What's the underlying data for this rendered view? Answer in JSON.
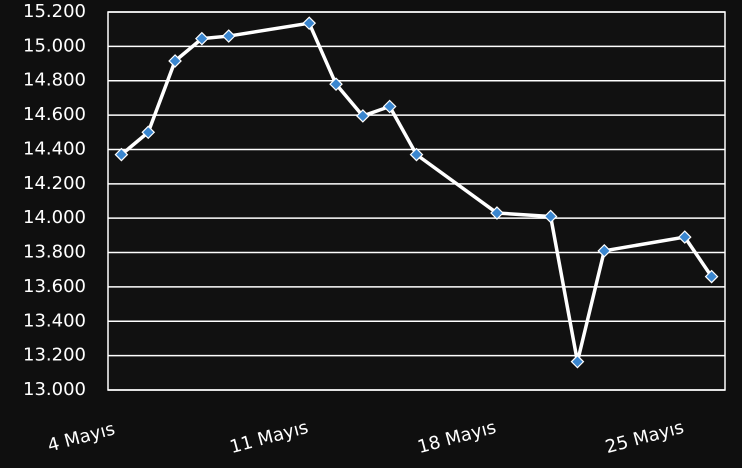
{
  "chart_data": {
    "type": "line",
    "x": [
      4,
      5,
      6,
      7,
      8,
      11,
      12,
      13,
      14,
      15,
      18,
      20,
      21,
      22,
      25,
      26
    ],
    "series": [
      {
        "color": "#ffffff",
        "marker_color": "#3a86cf",
        "values": [
          14370,
          14500,
          14915,
          15045,
          15060,
          15135,
          14780,
          14595,
          14650,
          14370,
          14030,
          14010,
          13165,
          13810,
          13890,
          13660
        ]
      }
    ],
    "xlim": [
      3.5,
      26.5
    ],
    "xticks": [
      {
        "value": 4,
        "label": "4 Mayıs"
      },
      {
        "value": 11,
        "label": "11 Mayıs"
      },
      {
        "value": 18,
        "label": "18 Mayıs"
      },
      {
        "value": 25,
        "label": "25 Mayıs"
      }
    ],
    "ylim": [
      13000,
      15200
    ],
    "yticks": [
      {
        "value": 13000,
        "label": "13.000"
      },
      {
        "value": 13200,
        "label": "13.200"
      },
      {
        "value": 13400,
        "label": "13.400"
      },
      {
        "value": 13600,
        "label": "13.600"
      },
      {
        "value": 13800,
        "label": "13.800"
      },
      {
        "value": 14000,
        "label": "14.000"
      },
      {
        "value": 14200,
        "label": "14.200"
      },
      {
        "value": 14400,
        "label": "14.400"
      },
      {
        "value": 14600,
        "label": "14.600"
      },
      {
        "value": 14800,
        "label": "14.800"
      },
      {
        "value": 15000,
        "label": "15.000"
      },
      {
        "value": 15200,
        "label": "15.200"
      }
    ],
    "grid": true
  }
}
